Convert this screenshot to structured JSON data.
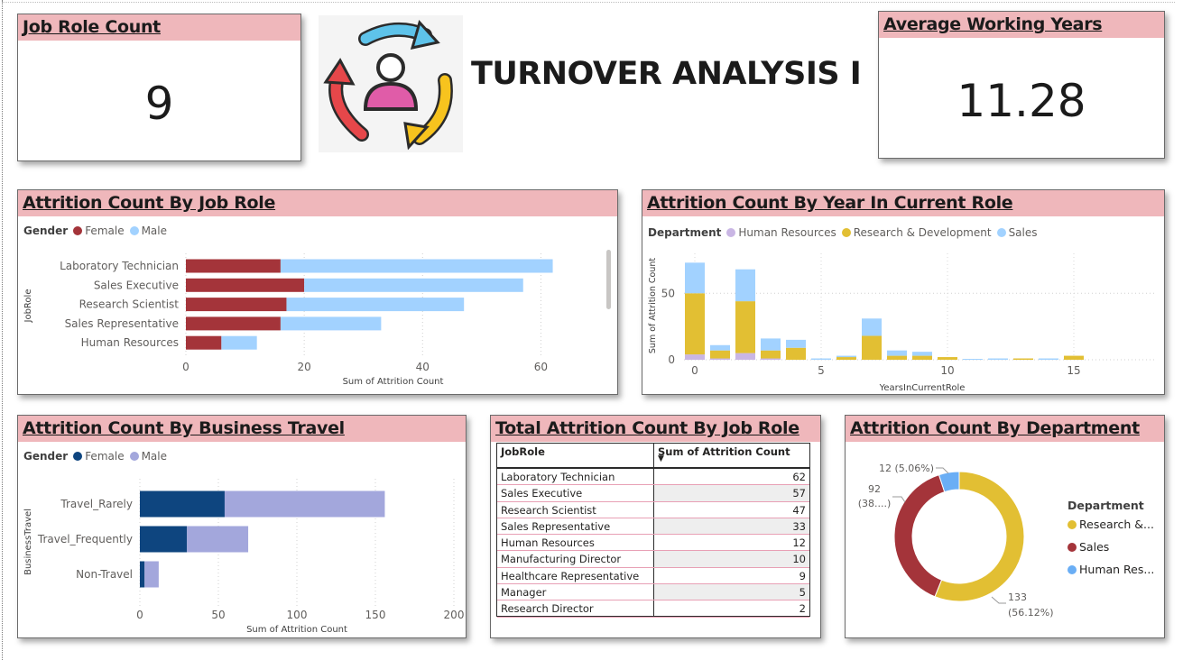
{
  "header": {
    "title": "TURNOVER ANALYSIS I"
  },
  "kpi_job_role": {
    "title": "Job Role Count",
    "value": "9"
  },
  "kpi_avg_years": {
    "title": "Average Working Years",
    "value": "11.28"
  },
  "colors": {
    "title_band": "#efb7bb",
    "female_red": "#a4343a",
    "male_blue": "#a2d2ff",
    "hr_purple": "#c9b6e4",
    "rd_yellow": "#e2bf33",
    "sales_blue": "#a2d2ff",
    "travel_female": "#0e457f",
    "travel_male": "#a3a7dc",
    "donut_yellow": "#e2bf33",
    "donut_red": "#a4343a",
    "donut_blue": "#6aaef5"
  },
  "chart_job_role": {
    "title": "Attrition Count By Job Role",
    "legend_title": "Gender",
    "chart_data": {
      "type": "bar",
      "orientation": "horizontal",
      "stacked": true,
      "categories": [
        "Laboratory Technician",
        "Sales Executive",
        "Research Scientist",
        "Sales Representative",
        "Human Resources"
      ],
      "series": [
        {
          "name": "Female",
          "values": [
            16,
            20,
            17,
            16,
            6
          ]
        },
        {
          "name": "Male",
          "values": [
            46,
            37,
            30,
            17,
            6
          ]
        }
      ],
      "xlabel": "Sum of Attrition Count",
      "ylabel": "JobRole",
      "xlim": [
        0,
        70
      ],
      "xticks": [
        "0",
        "20",
        "40",
        "60"
      ],
      "grid": true,
      "legend": "top-left"
    }
  },
  "chart_year_role": {
    "title": "Attrition Count By Year In Current Role",
    "legend_title": "Department",
    "chart_data": {
      "type": "bar",
      "stacked": true,
      "categories": [
        0,
        1,
        2,
        3,
        4,
        5,
        6,
        7,
        8,
        9,
        10,
        11,
        12,
        13,
        14,
        15
      ],
      "series": [
        {
          "name": "Human Resources",
          "values": [
            4,
            1,
            5,
            1,
            0,
            0,
            0,
            0,
            0,
            0,
            0,
            0,
            0,
            0,
            0,
            0
          ]
        },
        {
          "name": "Research & Development",
          "values": [
            46,
            6,
            39,
            6,
            9,
            0,
            2,
            18,
            3,
            3,
            2,
            0,
            0,
            1,
            0,
            3
          ]
        },
        {
          "name": "Sales",
          "values": [
            23,
            4,
            24,
            9,
            6,
            1,
            1,
            13,
            4,
            3,
            0,
            0,
            1,
            0,
            1,
            0
          ]
        }
      ],
      "xlabel": "YearsInCurrentRole",
      "ylabel": "Sum of Attrition Count",
      "ylim": [
        0,
        80
      ],
      "yticks": [
        "0",
        "50"
      ],
      "xticks": [
        "0",
        "5",
        "10",
        "15"
      ],
      "grid": true,
      "legend": "top-left"
    }
  },
  "chart_travel": {
    "title": "Attrition Count By Business Travel",
    "legend_title": "Gender",
    "chart_data": {
      "type": "bar",
      "orientation": "horizontal",
      "stacked": true,
      "categories": [
        "Travel_Rarely",
        "Travel_Frequently",
        "Non-Travel"
      ],
      "series": [
        {
          "name": "Female",
          "values": [
            54,
            30,
            3
          ]
        },
        {
          "name": "Male",
          "values": [
            102,
            39,
            9
          ]
        }
      ],
      "xlabel": "Sum of Attrition Count",
      "ylabel": "BusinessTravel",
      "xlim": [
        0,
        200
      ],
      "xticks": [
        "0",
        "50",
        "100",
        "150",
        "200"
      ],
      "grid": true,
      "legend": "top-left"
    }
  },
  "table_job_role": {
    "title": "Total Attrition Count By Job Role",
    "columns": [
      "JobRole",
      "Sum of Attrition Count"
    ],
    "rows": [
      [
        "Laboratory Technician",
        "62"
      ],
      [
        "Sales Executive",
        "57"
      ],
      [
        "Research Scientist",
        "47"
      ],
      [
        "Sales Representative",
        "33"
      ],
      [
        "Human Resources",
        "12"
      ],
      [
        "Manufacturing Director",
        "10"
      ],
      [
        "Healthcare Representative",
        "9"
      ],
      [
        "Manager",
        "5"
      ],
      [
        "Research Director",
        "2"
      ]
    ]
  },
  "chart_department": {
    "title": "Attrition Count By Department",
    "legend_title": "Department",
    "chart_data": {
      "type": "pie",
      "donut": true,
      "categories": [
        "Research &...",
        "Sales",
        "Human Res..."
      ],
      "values": [
        133,
        92,
        12
      ],
      "data_labels": [
        {
          "line1": "133",
          "line2": "(56.12%)"
        },
        {
          "line1": "92",
          "line2": "(38....)"
        },
        {
          "line1": "12 (5.06%)",
          "line2": ""
        }
      ],
      "legend": "right"
    }
  }
}
